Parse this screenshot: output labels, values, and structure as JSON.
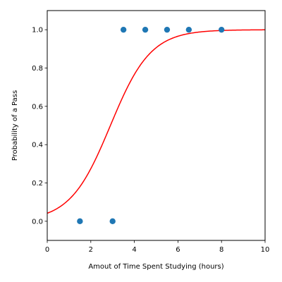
{
  "chart_data": {
    "type": "scatter",
    "title": "",
    "xlabel": "Amout of Time Spent Studying (hours)",
    "ylabel": "Probability of a Pass",
    "xlim": [
      0,
      10
    ],
    "ylim": [
      -0.1,
      1.1
    ],
    "xticks": [
      0,
      2,
      4,
      6,
      8,
      10
    ],
    "yticks": [
      0.0,
      0.2,
      0.4,
      0.6,
      0.8,
      1.0
    ],
    "xtick_labels": [
      "0",
      "2",
      "4",
      "6",
      "8",
      "10"
    ],
    "ytick_labels": [
      "0.0",
      "0.2",
      "0.4",
      "0.6",
      "0.8",
      "1.0"
    ],
    "grid": false,
    "series": [
      {
        "kind": "scatter",
        "color": "#1f77b4",
        "x": [
          1.5,
          3,
          3.5,
          4.5,
          5.5,
          6.5,
          8
        ],
        "y": [
          0,
          0,
          1,
          1,
          1,
          1,
          1
        ]
      },
      {
        "kind": "line",
        "shape": "logistic",
        "color": "#ff0000",
        "midpoint": 2.9,
        "slope": 1.08,
        "x_range": [
          0,
          10
        ]
      }
    ]
  }
}
